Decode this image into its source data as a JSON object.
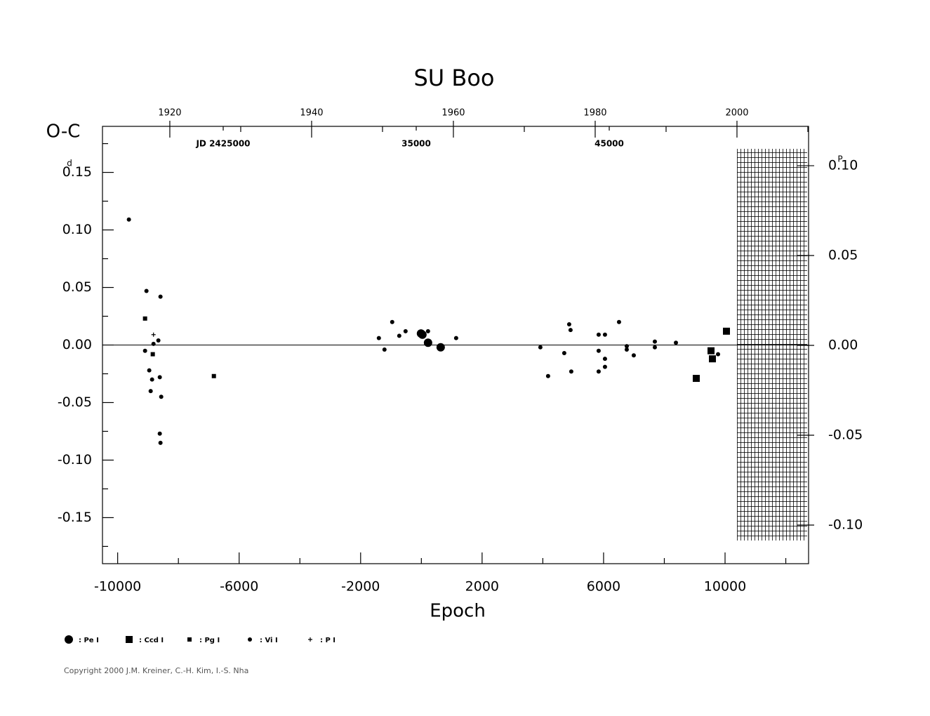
{
  "chart_data": {
    "type": "scatter",
    "title": "SU Boo",
    "ylabel": "O-C",
    "xlabel": "Epoch",
    "yunit": "d",
    "y2unit": "P",
    "copyright": "Copyright 2000 J.M. Kreiner, C.-H. Kim, I.-S. Nha",
    "xlim": [
      -10500,
      12750
    ],
    "xticks": [
      -10000,
      -6000,
      -2000,
      2000,
      6000,
      10000
    ],
    "xminorticks": [
      -8000,
      -4000,
      0,
      4000,
      8000,
      12000
    ],
    "ylim": [
      -0.19,
      0.19
    ],
    "yticks": [
      -0.15,
      {
        "value": -0.1,
        "label": "-0.10"
      },
      -0.05,
      {
        "value": 0,
        "label": "0.00"
      },
      0.05,
      {
        "value": 0.1,
        "label": "0.10"
      },
      0.15
    ],
    "yminorticks": [
      -0.175,
      -0.125,
      -0.075,
      -0.025,
      0.025,
      0.075,
      0.125,
      0.175
    ],
    "y2lim": [
      -0.1215,
      0.1219
    ],
    "y2ticks": [
      {
        "value": -0.1,
        "label": "-0.10"
      },
      -0.05,
      {
        "value": 0,
        "label": "0.00"
      },
      0.05,
      {
        "value": 0.1,
        "label": "0.10"
      }
    ],
    "yearlim": [
      1910.5,
      2010.1
    ],
    "yearticks": [
      1920,
      1940,
      1960,
      1980,
      2000
    ],
    "yearminorticks": [
      1930,
      1950,
      1970,
      1990,
      2010
    ],
    "jdlim": [
      2418745,
      2455327
    ],
    "jdticks": [
      {
        "value": 2425000,
        "label": "JD  2425000"
      },
      {
        "value": 2435000,
        "label": "35000"
      },
      {
        "value": 2445000,
        "label": "45000"
      }
    ],
    "hline": 0,
    "series": [
      {
        "name": ": Pe I",
        "color": "#000000",
        "marker": "circle",
        "size": 6,
        "x": [
          -12,
          35,
          220,
          636
        ],
        "values": [
          0.01,
          0.009,
          0.002,
          -0.002
        ]
      },
      {
        "name": ": Ccd I",
        "color": "#000000",
        "marker": "square",
        "size": 10,
        "x": [
          9052,
          9538,
          9584,
          10046
        ],
        "values": [
          -0.029,
          -0.005,
          -0.012,
          0.012
        ]
      },
      {
        "name": ": Pg I",
        "color": "#000000",
        "marker": "square",
        "size": 6,
        "x": [
          -9098,
          -8844,
          -6832
        ],
        "values": [
          0.023,
          -0.008,
          -0.027
        ]
      },
      {
        "name": ": Vi I",
        "color": "#000000",
        "marker": "circle",
        "size": 3,
        "x": [
          -9630,
          -9052,
          -8590,
          -8660,
          -9098,
          -8960,
          -8867,
          -8913,
          -8613,
          -8566,
          -8613,
          -8590,
          -8820,
          -1399,
          -1214,
          -960,
          -728,
          -520,
          220,
          1145,
          3919,
          4173,
          4705,
          4867,
          4913,
          4936,
          5838,
          5838,
          5838,
          6046,
          6046,
          6046,
          6509,
          6763,
          6763,
          6994,
          7688,
          7688,
          8382,
          9769
        ],
        "values": [
          0.109,
          0.047,
          0.042,
          0.004,
          -0.005,
          -0.022,
          -0.03,
          -0.04,
          -0.028,
          -0.045,
          -0.077,
          -0.085,
          0.001,
          0.006,
          -0.004,
          0.02,
          0.008,
          0.012,
          0.012,
          0.006,
          -0.002,
          -0.027,
          -0.007,
          0.018,
          0.013,
          -0.023,
          0.009,
          -0.005,
          -0.023,
          0.009,
          -0.012,
          -0.019,
          0.02,
          -0.001,
          -0.004,
          -0.009,
          0.003,
          -0.002,
          0.002,
          -0.008
        ]
      },
      {
        "name": ": P I",
        "color": "#000000",
        "marker": "plus",
        "size": 3,
        "x": [
          -8820
        ],
        "values": [
          0.009
        ]
      }
    ]
  }
}
